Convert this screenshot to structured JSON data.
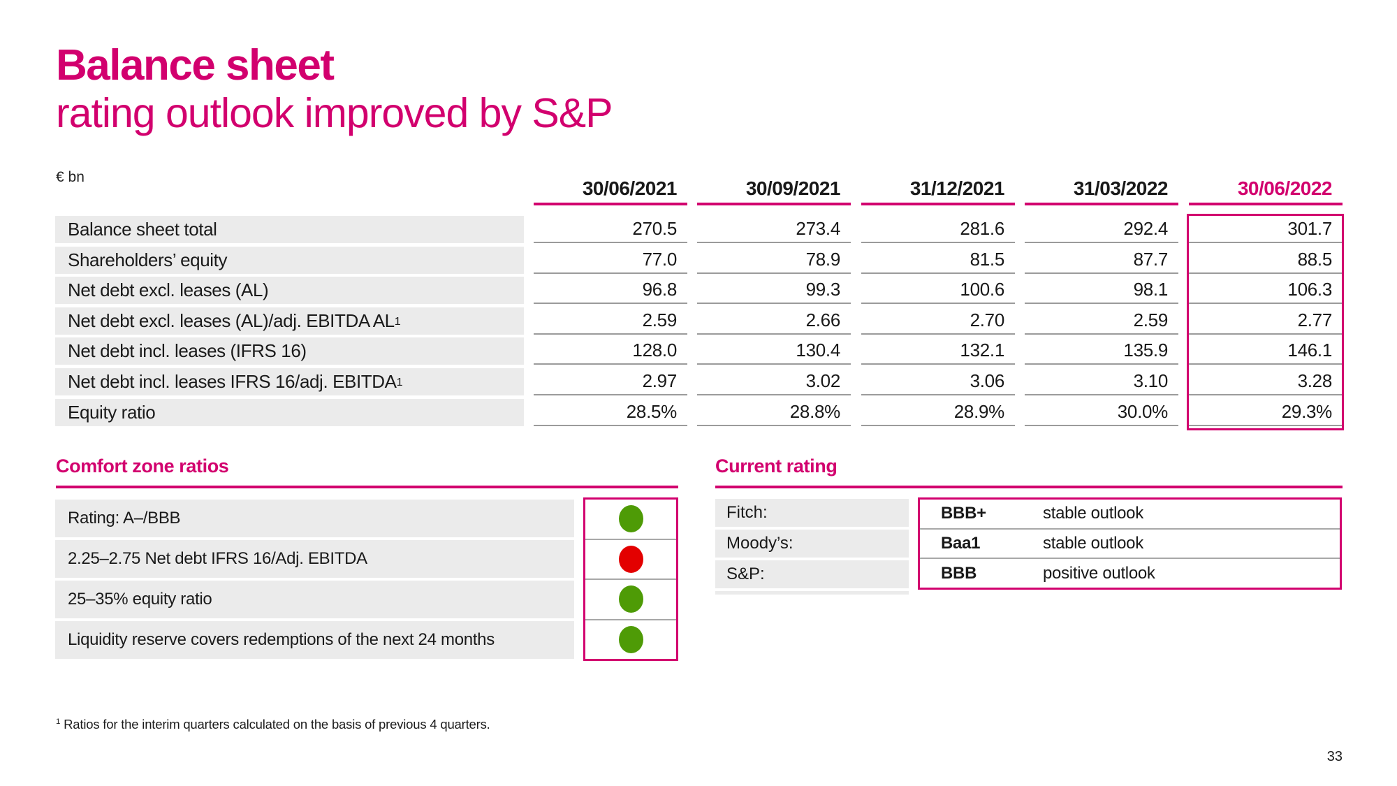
{
  "slide": {
    "title": "Balance sheet",
    "subtitle": "rating outlook improved by S&P",
    "page_number": "33",
    "footnote_marker": "1",
    "footnote": " Ratios for the interim quarters calculated on the basis of previous 4 quarters.",
    "accent_color": "#d2006e"
  },
  "balance_table": {
    "unit_label": "€ bn",
    "columns": [
      "30/06/2021",
      "30/09/2021",
      "31/12/2021",
      "31/03/2022",
      "30/06/2022"
    ],
    "highlighted_column": "30/06/2022",
    "rows": [
      {
        "label": "Balance sheet total",
        "sup": "",
        "values": [
          "270.5",
          "273.4",
          "281.6",
          "292.4",
          "301.7"
        ]
      },
      {
        "label": "Shareholders’ equity",
        "sup": "",
        "values": [
          "77.0",
          "78.9",
          "81.5",
          "87.7",
          "88.5"
        ]
      },
      {
        "label": "Net debt excl. leases (AL)",
        "sup": "",
        "values": [
          "96.8",
          "99.3",
          "100.6",
          "98.1",
          "106.3"
        ]
      },
      {
        "label": "Net debt excl. leases (AL)/adj. EBITDA AL",
        "sup": "1",
        "values": [
          "2.59",
          "2.66",
          "2.70",
          "2.59",
          "2.77"
        ]
      },
      {
        "label": "Net debt incl. leases (IFRS 16)",
        "sup": "",
        "values": [
          "128.0",
          "130.4",
          "132.1",
          "135.9",
          "146.1"
        ]
      },
      {
        "label": "Net debt incl. leases IFRS 16/adj. EBITDA",
        "sup": "1",
        "values": [
          "2.97",
          "3.02",
          "3.06",
          "3.10",
          "3.28"
        ]
      },
      {
        "label": "Equity ratio",
        "sup": "",
        "values": [
          "28.5%",
          "28.8%",
          "28.9%",
          "30.0%",
          "29.3%"
        ]
      }
    ]
  },
  "comfort_zone": {
    "heading": "Comfort zone ratios",
    "items": [
      {
        "label": "Rating: A–/BBB",
        "status": "green"
      },
      {
        "label": "2.25–2.75 Net debt IFRS 16/Adj. EBITDA",
        "status": "red"
      },
      {
        "label": "25–35% equity ratio",
        "status": "green"
      },
      {
        "label": "Liquidity reserve covers redemptions of the next 24 months",
        "status": "green"
      }
    ],
    "status_colors": {
      "green": "#4e9b06",
      "red": "#e30000"
    }
  },
  "current_rating": {
    "heading": "Current rating",
    "rows": [
      {
        "agency": "Fitch:",
        "rating": "BBB+",
        "outlook": "stable outlook"
      },
      {
        "agency": "Moody’s:",
        "rating": "Baa1",
        "outlook": "stable outlook"
      },
      {
        "agency": "S&P:",
        "rating": "BBB",
        "outlook": "positive outlook"
      }
    ]
  }
}
